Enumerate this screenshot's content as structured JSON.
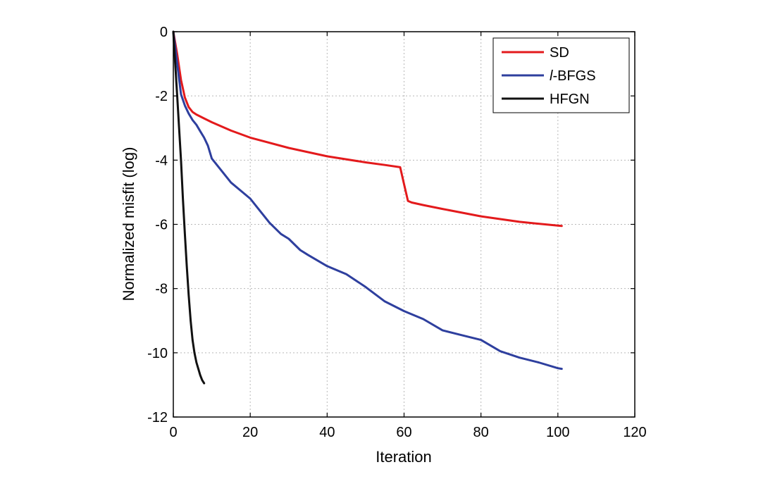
{
  "chart_data": {
    "type": "line",
    "xlabel": "Iteration",
    "ylabel": "Normalized misfit (log)",
    "xlim": [
      0,
      120
    ],
    "ylim": [
      -12,
      0
    ],
    "xticks": [
      0,
      20,
      40,
      60,
      80,
      100,
      120
    ],
    "yticks": [
      0,
      -2,
      -4,
      -6,
      -8,
      -10,
      -12
    ],
    "grid": true,
    "legend_position": "top-right",
    "series": [
      {
        "name": "SD",
        "color": "#e31a1c",
        "x": [
          0,
          1,
          2,
          3,
          4,
          5,
          6,
          8,
          10,
          15,
          20,
          30,
          40,
          50,
          55,
          59,
          60,
          61,
          62,
          65,
          70,
          80,
          90,
          100,
          101
        ],
        "y": [
          0,
          -0.7,
          -1.5,
          -2.05,
          -2.35,
          -2.5,
          -2.58,
          -2.7,
          -2.82,
          -3.08,
          -3.3,
          -3.62,
          -3.88,
          -4.07,
          -4.15,
          -4.22,
          -4.75,
          -5.27,
          -5.32,
          -5.4,
          -5.52,
          -5.75,
          -5.92,
          -6.04,
          -6.05
        ]
      },
      {
        "name": "l-BFGS",
        "color": "#2e3f9e",
        "x": [
          0,
          1,
          2,
          3,
          4,
          5,
          6,
          7,
          8,
          9,
          10,
          12,
          15,
          18,
          20,
          22,
          25,
          28,
          30,
          33,
          35,
          40,
          45,
          50,
          55,
          60,
          65,
          70,
          75,
          80,
          85,
          90,
          95,
          100,
          101
        ],
        "y": [
          0,
          -1.0,
          -1.95,
          -2.3,
          -2.55,
          -2.75,
          -2.9,
          -3.1,
          -3.3,
          -3.55,
          -3.95,
          -4.25,
          -4.7,
          -5.0,
          -5.2,
          -5.5,
          -5.95,
          -6.3,
          -6.45,
          -6.8,
          -6.95,
          -7.3,
          -7.55,
          -7.95,
          -8.4,
          -8.7,
          -8.95,
          -9.3,
          -9.45,
          -9.6,
          -9.95,
          -10.15,
          -10.3,
          -10.48,
          -10.5
        ]
      },
      {
        "name": "HFGN",
        "color": "#111111",
        "x": [
          0,
          0.5,
          1,
          1.5,
          2,
          2.5,
          3,
          3.5,
          4,
          4.5,
          5,
          5.5,
          6,
          6.5,
          7,
          7.5,
          8
        ],
        "y": [
          0,
          -1.0,
          -2.0,
          -3.0,
          -4.0,
          -5.2,
          -6.3,
          -7.3,
          -8.2,
          -9.0,
          -9.6,
          -10.0,
          -10.3,
          -10.5,
          -10.7,
          -10.85,
          -10.95
        ]
      }
    ]
  }
}
